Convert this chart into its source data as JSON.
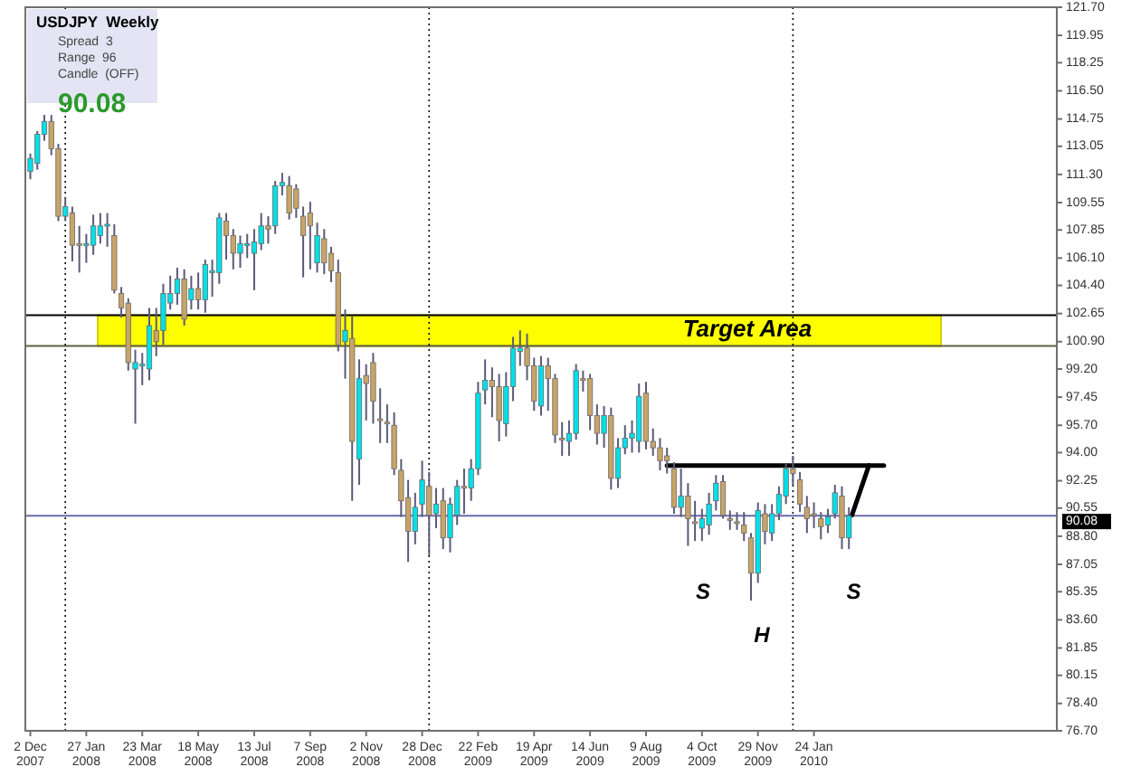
{
  "chart_data": {
    "type": "candlestick",
    "title": "USDJPY  Weekly",
    "annotations": [
      "Spread  3",
      "Range  96",
      "Candle  (OFF)",
      "90.08",
      "S",
      "H",
      "S"
    ],
    "xlim": [
      "2007-11-27",
      "2010-09-24"
    ],
    "xticks": [
      {
        "value": "2007-12-02",
        "label": "2 Dec 2007"
      },
      {
        "value": "2008-01-27",
        "label": "27 Jan 2008"
      },
      {
        "value": "2008-03-23",
        "label": "23 Mar 2008"
      },
      {
        "value": "2008-05-18",
        "label": "18 May 2008"
      },
      {
        "value": "2008-07-13",
        "label": "13 Jul 2008"
      },
      {
        "value": "2008-09-07",
        "label": "7 Sep 2008"
      },
      {
        "value": "2008-11-02",
        "label": "2 Nov 2008"
      },
      {
        "value": "2008-12-28",
        "label": "28 Dec 2008"
      },
      {
        "value": "2009-02-22",
        "label": "22 Feb 2009"
      },
      {
        "value": "2009-04-19",
        "label": "19 Apr 2009"
      },
      {
        "value": "2009-06-14",
        "label": "14 Jun 2009"
      },
      {
        "value": "2009-08-09",
        "label": "9 Aug 2009"
      },
      {
        "value": "2009-10-04",
        "label": "4 Oct 2009"
      },
      {
        "value": "2009-11-29",
        "label": "29 Nov 2009"
      },
      {
        "value": "2010-01-24",
        "label": "24 Jan 2010"
      }
    ],
    "ylim": [
      76.7,
      121.7
    ],
    "yticks": [
      {
        "value": 121.7,
        "label": "121.70"
      },
      119.95,
      118.25,
      {
        "value": 116.5,
        "label": "116.50"
      },
      114.75,
      113.05,
      {
        "value": 111.3,
        "label": "111.30"
      },
      109.55,
      107.85,
      {
        "value": 106.1,
        "label": "106.10"
      },
      {
        "value": 104.4,
        "label": "104.40"
      },
      102.65,
      {
        "value": 100.9,
        "label": "100.90"
      },
      {
        "value": 99.2,
        "label": "99.20"
      },
      97.45,
      {
        "value": 95.7,
        "label": "95.70"
      },
      {
        "value": 94,
        "label": "94.00"
      },
      92.25,
      90.55,
      {
        "value": 88.8,
        "label": "88.80"
      },
      87.05,
      85.35,
      {
        "value": 83.6,
        "label": "83.60"
      },
      81.85,
      80.15,
      {
        "value": 78.4,
        "label": "78.40"
      },
      {
        "value": 76.7,
        "label": "76.70"
      }
    ],
    "bands": [
      {
        "axis": "y",
        "from": 100.63,
        "to": 102.54,
        "label": "Target Area",
        "color": "#ffff00"
      }
    ],
    "ref_lines": [
      {
        "axis": "y",
        "value": 102.54,
        "color": "#000000",
        "line_style": "solid"
      },
      {
        "axis": "y",
        "value": 100.63,
        "color": "#606040",
        "line_style": "solid"
      },
      {
        "axis": "y",
        "value": 90.08,
        "label": "90.08",
        "color": "#6a6aaa",
        "line_style": "solid"
      },
      {
        "axis": "x",
        "value": "2008-01-06",
        "color": "#000000",
        "line_style": "dotted"
      },
      {
        "axis": "x",
        "value": "2009-01-04",
        "color": "#000000",
        "line_style": "dotted"
      },
      {
        "axis": "x",
        "value": "2010-01-03",
        "color": "#000000",
        "line_style": "dotted"
      }
    ],
    "series": [
      {
        "type": "line",
        "color": "#000000",
        "x": [
          "2009-08-30",
          "2010-04-04"
        ],
        "values": [
          93.2,
          93.2
        ]
      },
      {
        "type": "line",
        "color": "#000000",
        "x": [
          "2010-03-03",
          "2010-03-20"
        ],
        "values": [
          90.1,
          93.2
        ]
      },
      {
        "type": "candlestick",
        "x": [
          "2007-12-02",
          "2007-12-09",
          "2007-12-16",
          "2007-12-23",
          "2007-12-30",
          "2008-01-06",
          "2008-01-13",
          "2008-01-20",
          "2008-01-27",
          "2008-02-03",
          "2008-02-10",
          "2008-02-17",
          "2008-02-24",
          "2008-03-02",
          "2008-03-09",
          "2008-03-16",
          "2008-03-23",
          "2008-03-30",
          "2008-04-06",
          "2008-04-13",
          "2008-04-20",
          "2008-04-27",
          "2008-05-04",
          "2008-05-11",
          "2008-05-18",
          "2008-05-25",
          "2008-06-01",
          "2008-06-08",
          "2008-06-15",
          "2008-06-22",
          "2008-06-29",
          "2008-07-06",
          "2008-07-13",
          "2008-07-20",
          "2008-07-27",
          "2008-08-03",
          "2008-08-10",
          "2008-08-17",
          "2008-08-24",
          "2008-08-31",
          "2008-09-07",
          "2008-09-14",
          "2008-09-21",
          "2008-09-28",
          "2008-10-05",
          "2008-10-12",
          "2008-10-19",
          "2008-10-26",
          "2008-11-02",
          "2008-11-09",
          "2008-11-16",
          "2008-11-23",
          "2008-11-30",
          "2008-12-07",
          "2008-12-14",
          "2008-12-21",
          "2008-12-28",
          "2009-01-04",
          "2009-01-11",
          "2009-01-18",
          "2009-01-25",
          "2009-02-01",
          "2009-02-08",
          "2009-02-15",
          "2009-02-22",
          "2009-03-01",
          "2009-03-08",
          "2009-03-15",
          "2009-03-22",
          "2009-03-29",
          "2009-04-05",
          "2009-04-12",
          "2009-04-19",
          "2009-04-26",
          "2009-05-03",
          "2009-05-10",
          "2009-05-17",
          "2009-05-24",
          "2009-05-31",
          "2009-06-07",
          "2009-06-14",
          "2009-06-21",
          "2009-06-28",
          "2009-07-05",
          "2009-07-12",
          "2009-07-19",
          "2009-07-26",
          "2009-08-02",
          "2009-08-09",
          "2009-08-16",
          "2009-08-23",
          "2009-08-30",
          "2009-09-06",
          "2009-09-13",
          "2009-09-20",
          "2009-09-27",
          "2009-10-04",
          "2009-10-11",
          "2009-10-18",
          "2009-10-25",
          "2009-11-01",
          "2009-11-08",
          "2009-11-15",
          "2009-11-22",
          "2009-11-29",
          "2009-12-06",
          "2009-12-13",
          "2009-12-20",
          "2009-12-27",
          "2010-01-03",
          "2010-01-10",
          "2010-01-17",
          "2010-01-24",
          "2010-01-31",
          "2010-02-07",
          "2010-02-14",
          "2010-02-21",
          "2010-02-28"
        ],
        "ohlc": [
          [
            111.5,
            112.6,
            111.0,
            112.3
          ],
          [
            112.0,
            114.0,
            111.6,
            113.8
          ],
          [
            113.8,
            115.0,
            113.4,
            114.6
          ],
          [
            114.6,
            115.0,
            112.5,
            112.9
          ],
          [
            112.9,
            113.2,
            108.4,
            108.7
          ],
          [
            108.7,
            109.9,
            108.4,
            109.3
          ],
          [
            108.9,
            109.3,
            105.9,
            106.9
          ],
          [
            107.0,
            108.1,
            105.2,
            106.9
          ],
          [
            106.9,
            107.6,
            105.8,
            107.0
          ],
          [
            106.9,
            108.8,
            106.3,
            108.1
          ],
          [
            107.5,
            108.9,
            107.0,
            108.1
          ],
          [
            108.1,
            108.9,
            106.8,
            108.2
          ],
          [
            107.5,
            108.2,
            103.9,
            104.1
          ],
          [
            103.9,
            104.3,
            102.4,
            103.0
          ],
          [
            103.3,
            103.6,
            99.1,
            99.6
          ],
          [
            99.2,
            100.4,
            95.8,
            99.6
          ],
          [
            99.4,
            100.2,
            98.2,
            99.5
          ],
          [
            99.2,
            103.0,
            98.5,
            101.9
          ],
          [
            101.6,
            103.0,
            100.0,
            100.9
          ],
          [
            101.6,
            104.5,
            100.7,
            103.9
          ],
          [
            103.3,
            105.0,
            102.9,
            103.9
          ],
          [
            103.9,
            105.5,
            103.2,
            104.8
          ],
          [
            104.8,
            105.4,
            101.9,
            102.3
          ],
          [
            103.5,
            105.0,
            102.9,
            104.2
          ],
          [
            104.2,
            105.2,
            102.9,
            103.5
          ],
          [
            103.5,
            106.0,
            102.7,
            105.7
          ],
          [
            105.2,
            106.0,
            103.7,
            105.3
          ],
          [
            105.2,
            108.9,
            104.5,
            108.6
          ],
          [
            108.4,
            108.9,
            106.0,
            107.5
          ],
          [
            107.5,
            107.9,
            105.4,
            106.4
          ],
          [
            106.4,
            107.5,
            105.5,
            107.0
          ],
          [
            106.9,
            107.6,
            106.1,
            107.0
          ],
          [
            106.4,
            107.9,
            104.1,
            107.1
          ],
          [
            107.0,
            108.9,
            106.6,
            108.1
          ],
          [
            108.1,
            108.7,
            107.0,
            107.9
          ],
          [
            108.1,
            110.9,
            107.6,
            110.6
          ],
          [
            110.6,
            111.4,
            110.0,
            110.8
          ],
          [
            110.6,
            111.2,
            108.5,
            108.9
          ],
          [
            110.4,
            110.7,
            108.6,
            109.2
          ],
          [
            108.7,
            109.3,
            104.9,
            107.5
          ],
          [
            108.9,
            109.6,
            105.4,
            108.1
          ],
          [
            105.8,
            108.3,
            105.2,
            107.5
          ],
          [
            107.3,
            107.9,
            105.1,
            105.8
          ],
          [
            106.4,
            106.8,
            104.6,
            105.3
          ],
          [
            105.2,
            106.0,
            100.3,
            100.7
          ],
          [
            100.9,
            102.9,
            98.6,
            101.6
          ],
          [
            101.1,
            102.5,
            91.0,
            94.7
          ],
          [
            93.6,
            99.8,
            92.0,
            98.6
          ],
          [
            98.8,
            99.5,
            96.0,
            98.3
          ],
          [
            99.6,
            100.2,
            95.8,
            97.2
          ],
          [
            96.1,
            98.0,
            94.6,
            96.0
          ],
          [
            95.9,
            97.0,
            94.6,
            95.8
          ],
          [
            95.7,
            96.5,
            92.6,
            93.0
          ],
          [
            92.9,
            93.6,
            90.0,
            91.0
          ],
          [
            91.2,
            92.3,
            87.2,
            89.1
          ],
          [
            89.1,
            91.5,
            88.3,
            90.6
          ],
          [
            90.8,
            93.5,
            90.0,
            92.3
          ],
          [
            91.9,
            92.8,
            87.6,
            90.1
          ],
          [
            90.2,
            91.8,
            89.3,
            90.8
          ],
          [
            91.0,
            91.8,
            88.0,
            88.7
          ],
          [
            88.7,
            91.2,
            87.8,
            90.8
          ],
          [
            90.1,
            92.3,
            89.5,
            91.9
          ],
          [
            91.9,
            93.0,
            90.2,
            91.8
          ],
          [
            91.8,
            93.6,
            91.0,
            93.0
          ],
          [
            93.0,
            98.4,
            92.6,
            97.7
          ],
          [
            97.9,
            99.8,
            97.0,
            98.5
          ],
          [
            98.5,
            99.3,
            96.2,
            98.1
          ],
          [
            98.1,
            98.9,
            94.7,
            96.0
          ],
          [
            95.8,
            99.0,
            95.0,
            98.1
          ],
          [
            98.1,
            101.2,
            97.2,
            100.5
          ],
          [
            100.3,
            101.6,
            99.4,
            100.5
          ],
          [
            100.5,
            101.4,
            98.5,
            99.4
          ],
          [
            99.4,
            99.9,
            96.6,
            97.2
          ],
          [
            96.9,
            100.0,
            96.3,
            99.4
          ],
          [
            99.4,
            99.9,
            96.6,
            98.6
          ],
          [
            98.6,
            98.9,
            94.6,
            95.1
          ],
          [
            94.9,
            95.9,
            93.8,
            94.8
          ],
          [
            94.7,
            96.0,
            93.8,
            95.2
          ],
          [
            95.2,
            99.5,
            94.8,
            99.1
          ],
          [
            98.6,
            99.1,
            97.8,
            98.5
          ],
          [
            98.6,
            98.9,
            95.4,
            96.3
          ],
          [
            96.3,
            97.0,
            94.5,
            95.2
          ],
          [
            95.2,
            96.9,
            94.3,
            96.3
          ],
          [
            96.3,
            96.8,
            91.7,
            92.4
          ],
          [
            92.4,
            94.9,
            91.8,
            94.3
          ],
          [
            94.3,
            95.7,
            93.9,
            94.9
          ],
          [
            94.9,
            96.0,
            94.0,
            95.2
          ],
          [
            94.7,
            98.3,
            94.0,
            97.5
          ],
          [
            97.7,
            98.4,
            94.2,
            94.7
          ],
          [
            94.7,
            95.5,
            93.8,
            94.3
          ],
          [
            94.3,
            94.9,
            92.9,
            93.5
          ],
          [
            93.8,
            94.3,
            92.7,
            93.5
          ],
          [
            93.0,
            93.4,
            90.2,
            90.6
          ],
          [
            90.6,
            93.0,
            90.0,
            91.3
          ],
          [
            91.3,
            92.1,
            88.2,
            89.9
          ],
          [
            89.7,
            91.0,
            88.5,
            89.6
          ],
          [
            89.3,
            90.5,
            88.5,
            89.9
          ],
          [
            89.5,
            91.5,
            88.9,
            90.8
          ],
          [
            91.0,
            92.6,
            90.4,
            92.1
          ],
          [
            92.2,
            92.6,
            89.9,
            90.1
          ],
          [
            89.9,
            90.4,
            89.2,
            89.8
          ],
          [
            89.7,
            90.3,
            89.2,
            89.6
          ],
          [
            89.5,
            90.3,
            88.5,
            89.0
          ],
          [
            88.7,
            89.0,
            84.8,
            86.5
          ],
          [
            86.5,
            90.9,
            85.9,
            90.4
          ],
          [
            90.2,
            90.8,
            88.3,
            89.1
          ],
          [
            89.0,
            90.8,
            88.5,
            90.2
          ],
          [
            90.2,
            91.9,
            89.8,
            91.4
          ],
          [
            91.3,
            93.3,
            90.8,
            93.0
          ],
          [
            93.0,
            93.8,
            92.0,
            92.7
          ],
          [
            92.3,
            92.8,
            90.3,
            90.8
          ],
          [
            90.6,
            91.3,
            89.0,
            89.9
          ],
          [
            90.2,
            90.9,
            89.3,
            90.1
          ],
          [
            89.9,
            90.3,
            88.6,
            89.4
          ],
          [
            89.5,
            90.5,
            89.0,
            90.0
          ],
          [
            90.2,
            92.0,
            89.9,
            91.5
          ],
          [
            91.3,
            91.9,
            88.0,
            88.7
          ],
          [
            88.7,
            90.6,
            88.0,
            90.08
          ]
        ],
        "colors": [
          "#00e0e8",
          "#00e0e8",
          "#00e0e8",
          "#c8a468",
          "#c8a468",
          "#00e0e8",
          "#c8a468",
          "#c8a468",
          "#00e0e8",
          "#00e0e8",
          "#00e0e8",
          "#00e0e8",
          "#c8a468",
          "#c8a468",
          "#c8a468",
          "#00e0e8",
          "#00e0e8",
          "#00e0e8",
          "#c8a468",
          "#00e0e8",
          "#00e0e8",
          "#00e0e8",
          "#c8a468",
          "#00e0e8",
          "#c8a468",
          "#00e0e8",
          "#00e0e8",
          "#00e0e8",
          "#c8a468",
          "#c8a468",
          "#00e0e8",
          "#00e0e8",
          "#00e0e8",
          "#00e0e8",
          "#c8a468",
          "#00e0e8",
          "#00e0e8",
          "#c8a468",
          "#c8a468",
          "#c8a468",
          "#c8a468",
          "#00e0e8",
          "#c8a468",
          "#c8a468",
          "#c8a468",
          "#00e0e8",
          "#c8a468",
          "#00e0e8",
          "#c8a468",
          "#c8a468",
          "#c8a468",
          "#c8a468",
          "#c8a468",
          "#c8a468",
          "#c8a468",
          "#00e0e8",
          "#00e0e8",
          "#c8a468",
          "#00e0e8",
          "#c8a468",
          "#00e0e8",
          "#00e0e8",
          "#c8a468",
          "#00e0e8",
          "#00e0e8",
          "#00e0e8",
          "#c8a468",
          "#c8a468",
          "#00e0e8",
          "#00e0e8",
          "#00e0e8",
          "#c8a468",
          "#c8a468",
          "#00e0e8",
          "#c8a468",
          "#c8a468",
          "#c8a468",
          "#00e0e8",
          "#00e0e8",
          "#c8a468",
          "#c8a468",
          "#c8a468",
          "#00e0e8",
          "#c8a468",
          "#00e0e8",
          "#00e0e8",
          "#00e0e8",
          "#00e0e8",
          "#c8a468",
          "#c8a468",
          "#c8a468",
          "#c8a468",
          "#c8a468",
          "#00e0e8",
          "#c8a468",
          "#c8a468",
          "#00e0e8",
          "#00e0e8",
          "#00e0e8",
          "#c8a468",
          "#c8a468",
          "#c8a468",
          "#c8a468",
          "#c8a468",
          "#00e0e8",
          "#c8a468",
          "#00e0e8",
          "#00e0e8",
          "#00e0e8",
          "#c8a468",
          "#c8a468",
          "#c8a468",
          "#c8a468",
          "#c8a468",
          "#00e0e8",
          "#00e0e8",
          "#c8a468",
          "#00e0e8"
        ]
      }
    ]
  }
}
